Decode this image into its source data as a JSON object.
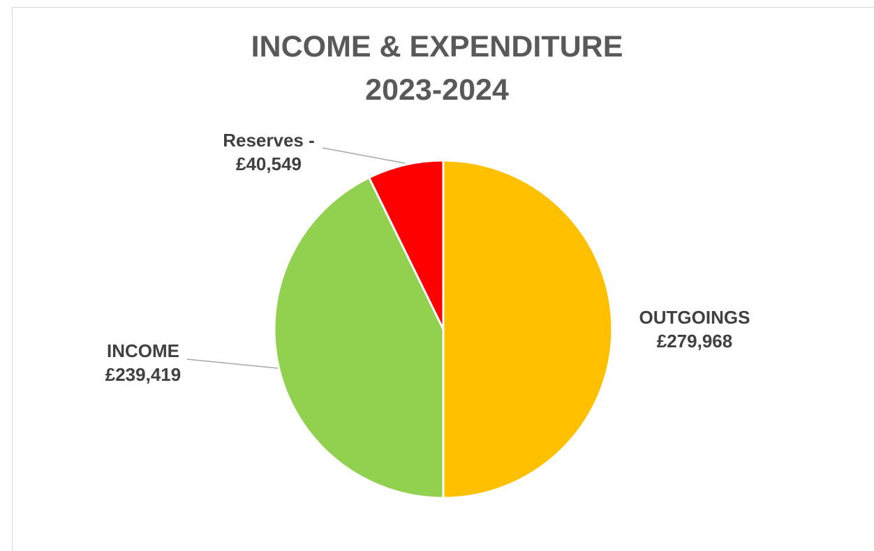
{
  "chart_data": {
    "type": "pie",
    "title": "INCOME & EXPENDITURE",
    "subtitle": "2023-2024",
    "slices": [
      {
        "label": "OUTGOINGS",
        "value": 279968,
        "value_text": "£279,968",
        "color": "#FFC000"
      },
      {
        "label": "INCOME",
        "value": 239419,
        "value_text": "£239,419",
        "color": "#92D050"
      },
      {
        "label": "Reserves -",
        "value": 40549,
        "value_text": "£40,549",
        "color": "#FF0000"
      }
    ],
    "legend": "none",
    "label_style": "outside labels with leader lines",
    "start_angle_deg": 0,
    "direction": "clockwise"
  }
}
